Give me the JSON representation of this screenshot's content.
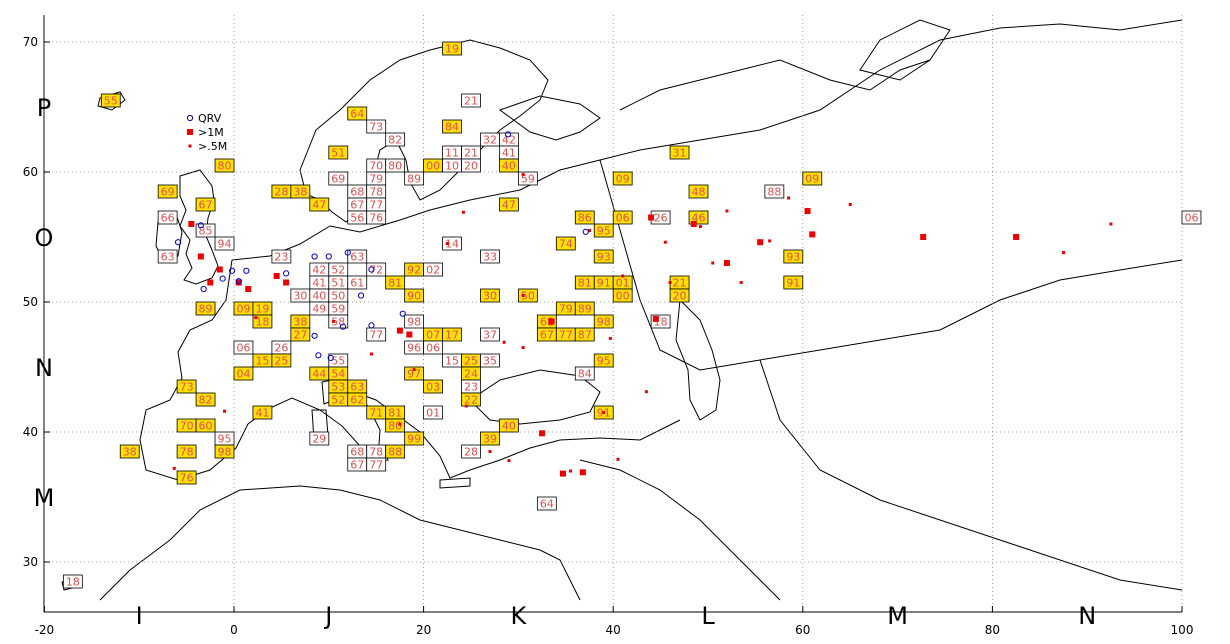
{
  "xaxis": {
    "ticks": [
      "-20",
      "0",
      "20",
      "40",
      "60",
      "80",
      "100"
    ]
  },
  "yaxis": {
    "ticks": [
      "70",
      "60",
      "50",
      "40",
      "30"
    ]
  },
  "field_rows": [
    "P",
    "O",
    "N",
    "M"
  ],
  "field_cols": [
    "I",
    "J",
    "K",
    "L",
    "M",
    "N"
  ],
  "legend": [
    {
      "label": "QRV",
      "symbol": "circle",
      "color": "#0000cc"
    },
    {
      "label": ">1M",
      "symbol": "square-large",
      "color": "#ee0000"
    },
    {
      "label": ">.5M",
      "symbol": "square-small",
      "color": "#ee0000"
    }
  ],
  "colors": {
    "active": "#ffe000",
    "inactive": "#ffffff",
    "label": "#e05050",
    "grid": "#888888"
  },
  "squares": [
    {
      "label": "19",
      "lon": 23,
      "lat": 69.5,
      "active": true
    },
    {
      "label": "55",
      "lon": -13,
      "lat": 65.5,
      "active": true
    },
    {
      "label": "21",
      "lon": 25,
      "lat": 65.5,
      "active": false
    },
    {
      "label": "64",
      "lon": 13,
      "lat": 64.5,
      "active": true
    },
    {
      "label": "73",
      "lon": 15,
      "lat": 63.5,
      "active": false
    },
    {
      "label": "84",
      "lon": 23,
      "lat": 63.5,
      "active": true
    },
    {
      "label": "82",
      "lon": 17,
      "lat": 62.5,
      "active": false
    },
    {
      "label": "32",
      "lon": 27,
      "lat": 62.5,
      "active": false
    },
    {
      "label": "42",
      "lon": 29,
      "lat": 62.5,
      "active": false
    },
    {
      "label": "51",
      "lon": 11,
      "lat": 61.5,
      "active": true
    },
    {
      "label": "11",
      "lon": 23,
      "lat": 61.5,
      "active": false
    },
    {
      "label": "21",
      "lon": 25,
      "lat": 61.5,
      "active": false
    },
    {
      "label": "41",
      "lon": 29,
      "lat": 61.5,
      "active": false
    },
    {
      "label": "31",
      "lon": 47,
      "lat": 61.5,
      "active": true
    },
    {
      "label": "80",
      "lon": -1,
      "lat": 60.5,
      "active": true
    },
    {
      "label": "70",
      "lon": 15,
      "lat": 60.5,
      "active": false
    },
    {
      "label": "80",
      "lon": 17,
      "lat": 60.5,
      "active": false
    },
    {
      "label": "00",
      "lon": 21,
      "lat": 60.5,
      "active": true
    },
    {
      "label": "10",
      "lon": 23,
      "lat": 60.5,
      "active": false
    },
    {
      "label": "20",
      "lon": 25,
      "lat": 60.5,
      "active": false
    },
    {
      "label": "40",
      "lon": 29,
      "lat": 60.5,
      "active": true
    },
    {
      "label": "69",
      "lon": 11,
      "lat": 59.5,
      "active": false
    },
    {
      "label": "79",
      "lon": 15,
      "lat": 59.5,
      "active": false
    },
    {
      "label": "89",
      "lon": 19,
      "lat": 59.5,
      "active": false
    },
    {
      "label": "59",
      "lon": 31,
      "lat": 59.5,
      "active": false
    },
    {
      "label": "09",
      "lon": 41,
      "lat": 59.5,
      "active": true
    },
    {
      "label": "09",
      "lon": 61,
      "lat": 59.5,
      "active": true
    },
    {
      "label": "28",
      "lon": 5,
      "lat": 58.5,
      "active": true
    },
    {
      "label": "38",
      "lon": 7,
      "lat": 58.5,
      "active": true
    },
    {
      "label": "68",
      "lon": 13,
      "lat": 58.5,
      "active": false
    },
    {
      "label": "78",
      "lon": 15,
      "lat": 58.5,
      "active": false
    },
    {
      "label": "48",
      "lon": 49,
      "lat": 58.5,
      "active": true
    },
    {
      "label": "88",
      "lon": 57,
      "lat": 58.5,
      "active": false
    },
    {
      "label": "69",
      "lon": -7,
      "lat": 58.5,
      "active": true
    },
    {
      "label": "67",
      "lon": -3,
      "lat": 57.5,
      "active": true
    },
    {
      "label": "47",
      "lon": 9,
      "lat": 57.5,
      "active": true
    },
    {
      "label": "67",
      "lon": 13,
      "lat": 57.5,
      "active": false
    },
    {
      "label": "77",
      "lon": 15,
      "lat": 57.5,
      "active": false
    },
    {
      "label": "47",
      "lon": 29,
      "lat": 57.5,
      "active": true
    },
    {
      "label": "66",
      "lon": -7,
      "lat": 56.5,
      "active": false
    },
    {
      "label": "56",
      "lon": 13,
      "lat": 56.5,
      "active": false
    },
    {
      "label": "76",
      "lon": 15,
      "lat": 56.5,
      "active": false
    },
    {
      "label": "86",
      "lon": 37,
      "lat": 56.5,
      "active": true
    },
    {
      "label": "06",
      "lon": 41,
      "lat": 56.5,
      "active": true
    },
    {
      "label": "26",
      "lon": 45,
      "lat": 56.5,
      "active": false
    },
    {
      "label": "46",
      "lon": 49,
      "lat": 56.5,
      "active": true
    },
    {
      "label": "06",
      "lon": 101,
      "lat": 56.5,
      "active": false
    },
    {
      "label": "85",
      "lon": -3,
      "lat": 55.5,
      "active": false
    },
    {
      "label": "95",
      "lon": 39,
      "lat": 55.5,
      "active": true
    },
    {
      "label": "74",
      "lon": 35,
      "lat": 54.5,
      "active": true
    },
    {
      "label": "94",
      "lon": -1,
      "lat": 54.5,
      "active": false
    },
    {
      "label": "14",
      "lon": 23,
      "lat": 54.5,
      "active": false
    },
    {
      "label": "63",
      "lon": -7,
      "lat": 53.5,
      "active": false
    },
    {
      "label": "93",
      "lon": 39,
      "lat": 53.5,
      "active": true
    },
    {
      "label": "33",
      "lon": 27,
      "lat": 53.5,
      "active": false
    },
    {
      "label": "93",
      "lon": 59,
      "lat": 53.5,
      "active": true
    },
    {
      "label": "23",
      "lon": 5,
      "lat": 53.5,
      "active": false
    },
    {
      "label": "63",
      "lon": 13,
      "lat": 53.5,
      "active": false
    },
    {
      "label": "92",
      "lon": 19,
      "lat": 52.5,
      "active": true
    },
    {
      "label": "02",
      "lon": 21,
      "lat": 52.5,
      "active": false
    },
    {
      "label": "42",
      "lon": 9,
      "lat": 52.5,
      "active": false
    },
    {
      "label": "52",
      "lon": 11,
      "lat": 52.5,
      "active": false
    },
    {
      "label": "72",
      "lon": 15,
      "lat": 52.5,
      "active": false
    },
    {
      "label": "81",
      "lon": 37,
      "lat": 51.5,
      "active": true
    },
    {
      "label": "91",
      "lon": 39,
      "lat": 51.5,
      "active": true
    },
    {
      "label": "01",
      "lon": 41,
      "lat": 51.5,
      "active": true
    },
    {
      "label": "21",
      "lon": 47,
      "lat": 51.5,
      "active": true
    },
    {
      "label": "91",
      "lon": 59,
      "lat": 51.5,
      "active": true
    },
    {
      "label": "41",
      "lon": 9,
      "lat": 51.5,
      "active": false
    },
    {
      "label": "51",
      "lon": 11,
      "lat": 51.5,
      "active": false
    },
    {
      "label": "61",
      "lon": 13,
      "lat": 51.5,
      "active": false
    },
    {
      "label": "81",
      "lon": 17,
      "lat": 51.5,
      "active": true
    },
    {
      "label": "30",
      "lon": 27,
      "lat": 50.5,
      "active": true
    },
    {
      "label": "50",
      "lon": 31,
      "lat": 50.5,
      "active": true
    },
    {
      "label": "90",
      "lon": 19,
      "lat": 50.5,
      "active": true
    },
    {
      "label": "00",
      "lon": 41,
      "lat": 50.5,
      "active": true
    },
    {
      "label": "20",
      "lon": 47,
      "lat": 50.5,
      "active": true
    },
    {
      "label": "30",
      "lon": 7,
      "lat": 50.5,
      "active": false
    },
    {
      "label": "40",
      "lon": 9,
      "lat": 50.5,
      "active": false
    },
    {
      "label": "50",
      "lon": 11,
      "lat": 50.5,
      "active": false
    },
    {
      "label": "89",
      "lon": -3,
      "lat": 49.5,
      "active": true
    },
    {
      "label": "09",
      "lon": 1,
      "lat": 49.5,
      "active": true
    },
    {
      "label": "19",
      "lon": 3,
      "lat": 49.5,
      "active": true
    },
    {
      "label": "49",
      "lon": 9,
      "lat": 49.5,
      "active": false
    },
    {
      "label": "59",
      "lon": 11,
      "lat": 49.5,
      "active": false
    },
    {
      "label": "79",
      "lon": 35,
      "lat": 49.5,
      "active": true
    },
    {
      "label": "89",
      "lon": 37,
      "lat": 49.5,
      "active": true
    },
    {
      "label": "18",
      "lon": 3,
      "lat": 48.5,
      "active": true
    },
    {
      "label": "38",
      "lon": 7,
      "lat": 48.5,
      "active": true
    },
    {
      "label": "58",
      "lon": 11,
      "lat": 48.5,
      "active": false
    },
    {
      "label": "68",
      "lon": 33,
      "lat": 48.5,
      "active": true
    },
    {
      "label": "98",
      "lon": 39,
      "lat": 48.5,
      "active": true
    },
    {
      "label": "18",
      "lon": 45,
      "lat": 48.5,
      "active": false
    },
    {
      "label": "98",
      "lon": 19,
      "lat": 48.5,
      "active": false
    },
    {
      "label": "37",
      "lon": 27,
      "lat": 47.5,
      "active": false
    },
    {
      "label": "67",
      "lon": 33,
      "lat": 47.5,
      "active": true
    },
    {
      "label": "77",
      "lon": 35,
      "lat": 47.5,
      "active": true
    },
    {
      "label": "87",
      "lon": 37,
      "lat": 47.5,
      "active": true
    },
    {
      "label": "17",
      "lon": 23,
      "lat": 47.5,
      "active": true
    },
    {
      "label": "07",
      "lon": 21,
      "lat": 47.5,
      "active": true
    },
    {
      "label": "27",
      "lon": 7,
      "lat": 47.5,
      "active": true
    },
    {
      "label": "77",
      "lon": 15,
      "lat": 47.5,
      "active": false
    },
    {
      "label": "06",
      "lon": 1,
      "lat": 46.5,
      "active": false
    },
    {
      "label": "26",
      "lon": 5,
      "lat": 46.5,
      "active": false
    },
    {
      "label": "96",
      "lon": 19,
      "lat": 46.5,
      "active": false
    },
    {
      "label": "06",
      "lon": 21,
      "lat": 46.5,
      "active": false
    },
    {
      "label": "15",
      "lon": 3,
      "lat": 45.5,
      "active": true
    },
    {
      "label": "25",
      "lon": 5,
      "lat": 45.5,
      "active": true
    },
    {
      "label": "55",
      "lon": 11,
      "lat": 45.5,
      "active": false
    },
    {
      "label": "15",
      "lon": 23,
      "lat": 45.5,
      "active": false
    },
    {
      "label": "25",
      "lon": 25,
      "lat": 45.5,
      "active": true
    },
    {
      "label": "35",
      "lon": 27,
      "lat": 45.5,
      "active": false
    },
    {
      "label": "95",
      "lon": 39,
      "lat": 45.5,
      "active": true
    },
    {
      "label": "04",
      "lon": 1,
      "lat": 44.5,
      "active": true
    },
    {
      "label": "44",
      "lon": 9,
      "lat": 44.5,
      "active": true
    },
    {
      "label": "54",
      "lon": 11,
      "lat": 44.5,
      "active": true
    },
    {
      "label": "97",
      "lon": 19,
      "lat": 44.5,
      "active": true
    },
    {
      "label": "24",
      "lon": 25,
      "lat": 44.5,
      "active": true
    },
    {
      "label": "84",
      "lon": 37,
      "lat": 44.5,
      "active": false
    },
    {
      "label": "73",
      "lon": -5,
      "lat": 43.5,
      "active": true
    },
    {
      "label": "23",
      "lon": 25,
      "lat": 43.5,
      "active": false
    },
    {
      "label": "53",
      "lon": 11,
      "lat": 43.5,
      "active": true
    },
    {
      "label": "63",
      "lon": 13,
      "lat": 43.5,
      "active": true
    },
    {
      "label": "03",
      "lon": 21,
      "lat": 43.5,
      "active": true
    },
    {
      "label": "82",
      "lon": -3,
      "lat": 42.5,
      "active": true
    },
    {
      "label": "52",
      "lon": 11,
      "lat": 42.5,
      "active": true
    },
    {
      "label": "62",
      "lon": 13,
      "lat": 42.5,
      "active": true
    },
    {
      "label": "22",
      "lon": 25,
      "lat": 42.5,
      "active": true
    },
    {
      "label": "41",
      "lon": 3,
      "lat": 41.5,
      "active": true
    },
    {
      "label": "71",
      "lon": 15,
      "lat": 41.5,
      "active": true
    },
    {
      "label": "81",
      "lon": 17,
      "lat": 41.5,
      "active": true
    },
    {
      "label": "01",
      "lon": 21,
      "lat": 41.5,
      "active": false
    },
    {
      "label": "91",
      "lon": 39,
      "lat": 41.5,
      "active": true
    },
    {
      "label": "70",
      "lon": -5,
      "lat": 40.5,
      "active": true
    },
    {
      "label": "60",
      "lon": -3,
      "lat": 40.5,
      "active": true
    },
    {
      "label": "80",
      "lon": 17,
      "lat": 40.5,
      "active": true
    },
    {
      "label": "40",
      "lon": 29,
      "lat": 40.5,
      "active": true
    },
    {
      "label": "95",
      "lon": -1,
      "lat": 39.5,
      "active": false
    },
    {
      "label": "99",
      "lon": 19,
      "lat": 39.5,
      "active": true
    },
    {
      "label": "29",
      "lon": 9,
      "lat": 39.5,
      "active": false
    },
    {
      "label": "39",
      "lon": 27,
      "lat": 39.5,
      "active": true
    },
    {
      "label": "78",
      "lon": -5,
      "lat": 38.5,
      "active": true
    },
    {
      "label": "98",
      "lon": -1,
      "lat": 38.5,
      "active": true
    },
    {
      "label": "68",
      "lon": 13,
      "lat": 38.5,
      "active": false
    },
    {
      "label": "78",
      "lon": 15,
      "lat": 38.5,
      "active": false
    },
    {
      "label": "88",
      "lon": 17,
      "lat": 38.5,
      "active": true
    },
    {
      "label": "28",
      "lon": 25,
      "lat": 38.5,
      "active": false
    },
    {
      "label": "67",
      "lon": 13,
      "lat": 37.5,
      "active": false
    },
    {
      "label": "77",
      "lon": 15,
      "lat": 37.5,
      "active": false
    },
    {
      "label": "76",
      "lon": -5,
      "lat": 36.5,
      "active": true
    },
    {
      "label": "64",
      "lon": 33,
      "lat": 34.5,
      "active": false
    },
    {
      "label": "18",
      "lon": -17,
      "lat": 28.5,
      "active": false
    },
    {
      "label": "38",
      "lon": -11,
      "lat": 38.5,
      "active": true
    }
  ],
  "hot_spots_large": [
    {
      "lon": -4.5,
      "lat": 56
    },
    {
      "lon": -3.5,
      "lat": 53.5
    },
    {
      "lon": -1.5,
      "lat": 52.5
    },
    {
      "lon": -2.5,
      "lat": 51.5
    },
    {
      "lon": 0.5,
      "lat": 51.5
    },
    {
      "lon": 1.5,
      "lat": 51
    },
    {
      "lon": 4.5,
      "lat": 52
    },
    {
      "lon": 5.5,
      "lat": 51.5
    },
    {
      "lon": 17.5,
      "lat": 47.8
    },
    {
      "lon": 18.5,
      "lat": 47.5
    },
    {
      "lon": 44,
      "lat": 56.5
    },
    {
      "lon": 48.5,
      "lat": 56
    },
    {
      "lon": 52,
      "lat": 53
    },
    {
      "lon": 55.5,
      "lat": 54.6
    },
    {
      "lon": 60.5,
      "lat": 57
    },
    {
      "lon": 61,
      "lat": 55.2
    },
    {
      "lon": 72.7,
      "lat": 55
    },
    {
      "lon": 82.5,
      "lat": 55
    },
    {
      "lon": 44.5,
      "lat": 48.7
    },
    {
      "lon": 32.5,
      "lat": 39.9
    },
    {
      "lon": 34.7,
      "lat": 36.8
    },
    {
      "lon": 36.8,
      "lat": 36.9
    },
    {
      "lon": 33.5,
      "lat": 48.5
    }
  ],
  "hot_spots_small": [
    {
      "lon": -6.3,
      "lat": 37.2
    },
    {
      "lon": -1,
      "lat": 41.6
    },
    {
      "lon": 30.5,
      "lat": 50.5
    },
    {
      "lon": 37.5,
      "lat": 55.5
    },
    {
      "lon": 41,
      "lat": 52
    },
    {
      "lon": 50.5,
      "lat": 53
    },
    {
      "lon": 52,
      "lat": 57
    },
    {
      "lon": 58.5,
      "lat": 58
    },
    {
      "lon": 65,
      "lat": 57.5
    },
    {
      "lon": 87.5,
      "lat": 53.8
    },
    {
      "lon": 92.5,
      "lat": 56
    },
    {
      "lon": 28.5,
      "lat": 46.9
    },
    {
      "lon": 30.5,
      "lat": 46.5
    },
    {
      "lon": 39.7,
      "lat": 47.2
    },
    {
      "lon": 45.5,
      "lat": 54.6
    },
    {
      "lon": 46,
      "lat": 51.5
    },
    {
      "lon": 49.2,
      "lat": 55.8
    },
    {
      "lon": 56.5,
      "lat": 54.7
    },
    {
      "lon": 53.5,
      "lat": 51.5
    },
    {
      "lon": 43.5,
      "lat": 43.1
    },
    {
      "lon": 27,
      "lat": 38.5
    },
    {
      "lon": 29,
      "lat": 37.8
    },
    {
      "lon": 35.5,
      "lat": 37
    },
    {
      "lon": 39,
      "lat": 41.5
    },
    {
      "lon": 40.5,
      "lat": 37.9
    },
    {
      "lon": 24.5,
      "lat": 42
    },
    {
      "lon": 22.5,
      "lat": 54.5
    },
    {
      "lon": 30.5,
      "lat": 59.8
    },
    {
      "lon": 24.2,
      "lat": 56.9
    },
    {
      "lon": 14.5,
      "lat": 46
    },
    {
      "lon": 19,
      "lat": 44.8
    },
    {
      "lon": 17.5,
      "lat": 40.6
    },
    {
      "lon": 10.5,
      "lat": 48.5
    },
    {
      "lon": 2.3,
      "lat": 48.8
    }
  ],
  "qrv_points": [
    {
      "lon": -3.2,
      "lat": 51
    },
    {
      "lon": -0.2,
      "lat": 52.4
    },
    {
      "lon": -1.2,
      "lat": 51.8
    },
    {
      "lon": 0.5,
      "lat": 51.6
    },
    {
      "lon": 1.3,
      "lat": 52.4
    },
    {
      "lon": 5.5,
      "lat": 52.2
    },
    {
      "lon": 8.5,
      "lat": 53.5
    },
    {
      "lon": 10,
      "lat": 53.5
    },
    {
      "lon": 12,
      "lat": 53.8
    },
    {
      "lon": 14.5,
      "lat": 52.5
    },
    {
      "lon": 13.4,
      "lat": 50.5
    },
    {
      "lon": 17.8,
      "lat": 49.1
    },
    {
      "lon": 8.5,
      "lat": 47.4
    },
    {
      "lon": 11.5,
      "lat": 48.1
    },
    {
      "lon": 14.5,
      "lat": 48.2
    },
    {
      "lon": 10.2,
      "lat": 45.7
    },
    {
      "lon": 8.9,
      "lat": 45.9
    },
    {
      "lon": 28.9,
      "lat": 62.9
    },
    {
      "lon": 37.1,
      "lat": 55.4
    },
    {
      "lon": -3.5,
      "lat": 55.9
    },
    {
      "lon": -5.9,
      "lat": 54.6
    }
  ]
}
